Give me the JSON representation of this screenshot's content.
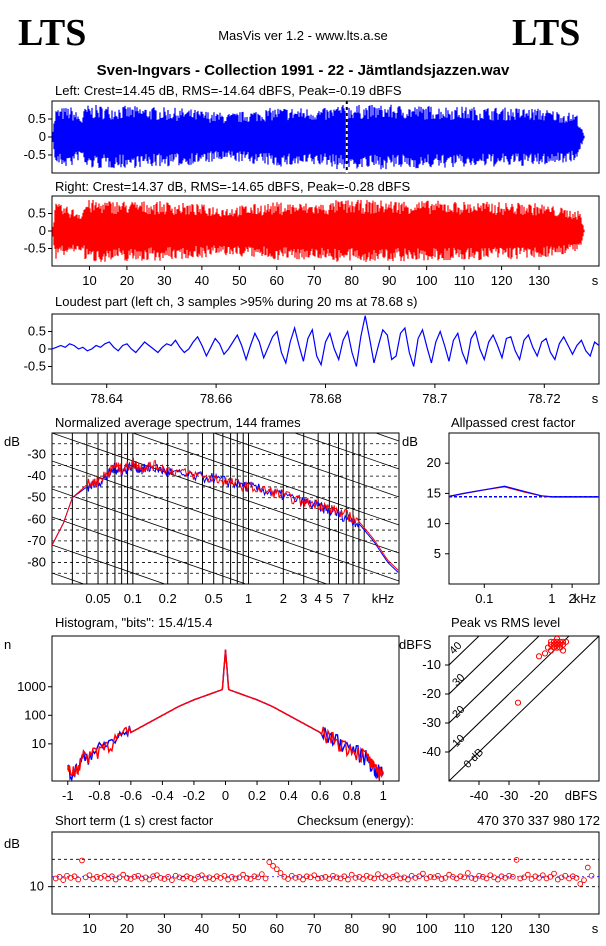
{
  "header": {
    "logo_left": "LTS",
    "logo_right": "LTS",
    "app": "MasVis ver 1.2 - www.lts.a.se",
    "file_title": "Sven-Ingvars - Collection 1991 - 22 - Jämtlandsjazzen.wav"
  },
  "colors": {
    "left": "#0000ff",
    "right": "#ff0000",
    "grid": "#000000"
  },
  "chart_data": [
    {
      "id": "left-waveform",
      "type": "area",
      "title": "Left: Crest=14.45 dB, RMS=-14.64 dBFS, Peak=-0.19 dBFS",
      "ylim": [
        -1,
        1
      ],
      "yticks": [
        "0.5",
        "0",
        "-0.5"
      ],
      "xlim": [
        0,
        146
      ],
      "loudest_marker_s": 78.68,
      "envelope": [
        {
          "t": 0,
          "a": 0.0
        },
        {
          "t": 1,
          "a": 0.85
        },
        {
          "t": 5,
          "a": 0.9
        },
        {
          "t": 8,
          "a": 0.6
        },
        {
          "t": 9,
          "a": 0.95
        },
        {
          "t": 20,
          "a": 0.92
        },
        {
          "t": 35,
          "a": 0.85
        },
        {
          "t": 47,
          "a": 0.7
        },
        {
          "t": 60,
          "a": 0.88
        },
        {
          "t": 74,
          "a": 0.85
        },
        {
          "t": 76,
          "a": 0.95
        },
        {
          "t": 90,
          "a": 0.95
        },
        {
          "t": 110,
          "a": 0.9
        },
        {
          "t": 130,
          "a": 0.85
        },
        {
          "t": 140,
          "a": 0.7
        },
        {
          "t": 142,
          "a": 0.05
        }
      ]
    },
    {
      "id": "right-waveform",
      "type": "area",
      "title": "Right: Crest=14.37 dB, RMS=-14.65 dBFS, Peak=-0.28 dBFS",
      "ylim": [
        -1,
        1
      ],
      "yticks": [
        "0.5",
        "0",
        "-0.5"
      ],
      "xlim": [
        0,
        146
      ],
      "xticks": [
        "10",
        "20",
        "30",
        "40",
        "50",
        "60",
        "70",
        "80",
        "90",
        "100",
        "110",
        "120",
        "130"
      ],
      "xunit": "s",
      "envelope": [
        {
          "t": 0,
          "a": 0.0
        },
        {
          "t": 1,
          "a": 0.85
        },
        {
          "t": 8,
          "a": 0.6
        },
        {
          "t": 9,
          "a": 0.95
        },
        {
          "t": 30,
          "a": 0.9
        },
        {
          "t": 47,
          "a": 0.75
        },
        {
          "t": 60,
          "a": 0.88
        },
        {
          "t": 74,
          "a": 0.85
        },
        {
          "t": 76,
          "a": 0.95
        },
        {
          "t": 100,
          "a": 0.93
        },
        {
          "t": 130,
          "a": 0.85
        },
        {
          "t": 141,
          "a": 0.6
        },
        {
          "t": 142,
          "a": 0.05
        }
      ]
    },
    {
      "id": "loudest-part",
      "type": "line",
      "title": "Loudest part (left  ch, 3 samples >95% during 20 ms at 78.68 s)",
      "ylim": [
        -1,
        1
      ],
      "yticks": [
        "0.5",
        "0",
        "-0.5"
      ],
      "xlim": [
        78.63,
        78.73
      ],
      "xticks": [
        "78.64",
        "78.66",
        "78.68",
        "78.7",
        "78.72"
      ],
      "xunit": "s",
      "y": [
        0.0,
        0.05,
        0.1,
        0.05,
        0.15,
        0.1,
        0.0,
        0.05,
        -0.05,
        0.0,
        0.1,
        0.05,
        0.15,
        0.2,
        0.05,
        -0.05,
        0.1,
        0.15,
        0.0,
        -0.1,
        0.05,
        0.2,
        0.1,
        0.0,
        -0.1,
        0.05,
        0.15,
        0.1,
        0.25,
        0.05,
        -0.1,
        0.0,
        0.2,
        0.35,
        0.1,
        -0.2,
        0.05,
        0.3,
        0.15,
        -0.15,
        0.0,
        0.2,
        0.4,
        0.1,
        -0.3,
        0.1,
        0.45,
        0.2,
        -0.25,
        0.05,
        0.35,
        0.5,
        -0.1,
        -0.4,
        0.2,
        0.6,
        0.1,
        -0.35,
        0.3,
        0.55,
        -0.2,
        -0.45,
        0.2,
        0.45,
        0.0,
        -0.3,
        0.25,
        0.5,
        -0.1,
        -0.5,
        0.35,
        0.95,
        0.3,
        -0.4,
        0.1,
        0.55,
        0.4,
        -0.3,
        -0.2,
        0.45,
        0.6,
        -0.1,
        -0.5,
        0.3,
        0.55,
        0.05,
        -0.4,
        0.2,
        0.5,
        0.1,
        -0.35,
        0.25,
        0.45,
        -0.1,
        -0.4,
        0.3,
        0.5,
        0.0,
        -0.3,
        0.2,
        0.4,
        0.1,
        -0.25,
        0.3,
        0.35,
        -0.05,
        -0.3,
        0.25,
        0.4,
        0.05,
        -0.2,
        0.2,
        0.3,
        -0.1,
        -0.3,
        0.15,
        0.35,
        0.1,
        -0.15,
        0.1,
        0.25,
        -0.05,
        -0.2,
        0.2,
        0.1
      ]
    },
    {
      "id": "spectrum",
      "type": "line",
      "title": "Normalized average spectrum, 144 frames",
      "ylabel": "dB",
      "ylim": [
        -90,
        -20
      ],
      "yticks": [
        "-30",
        "-40",
        "-50",
        "-60",
        "-70",
        "-80"
      ],
      "xscale": "log",
      "xlim": [
        0.02,
        20
      ],
      "xticks": [
        "0.05",
        "0.1",
        "0.2",
        "0.5",
        "1",
        "2",
        "3",
        "4",
        "5",
        "7"
      ],
      "xunit": "kHz",
      "x": [
        0.02,
        0.025,
        0.03,
        0.04,
        0.05,
        0.06,
        0.07,
        0.08,
        0.1,
        0.12,
        0.15,
        0.2,
        0.3,
        0.5,
        0.7,
        1,
        1.5,
        2,
        3,
        4,
        5,
        7,
        9,
        12,
        16,
        20
      ],
      "left": [
        -72,
        -62,
        -50,
        -45,
        -43,
        -40,
        -36,
        -38,
        -35,
        -37,
        -36,
        -38,
        -40,
        -41,
        -43,
        -45,
        -47,
        -49,
        -52,
        -54,
        -56,
        -59,
        -62,
        -70,
        -80,
        -85
      ],
      "right": [
        -72,
        -62,
        -50,
        -44,
        -42,
        -39,
        -35,
        -37,
        -34,
        -36,
        -35,
        -37,
        -39,
        -41,
        -43,
        -45,
        -47,
        -49,
        -52,
        -53,
        -55,
        -58,
        -61,
        -69,
        -79,
        -84
      ]
    },
    {
      "id": "allpassed-crest",
      "type": "line",
      "title": "Allpassed crest factor",
      "ylabel": "dB",
      "ylim": [
        0,
        25
      ],
      "yticks": [
        "20",
        "15",
        "10",
        "5"
      ],
      "xscale": "log",
      "xlim": [
        0.03,
        5
      ],
      "xticks": [
        "0.1",
        "1",
        "2"
      ],
      "xunit": "kHz",
      "x": [
        0.03,
        0.05,
        0.1,
        0.2,
        0.4,
        0.7,
        1,
        2,
        5
      ],
      "left": [
        14.5,
        15.0,
        15.6,
        16.2,
        15.3,
        14.6,
        14.45,
        14.45,
        14.45
      ],
      "right": [
        14.5,
        15.0,
        15.6,
        16.1,
        15.2,
        14.6,
        14.37,
        14.37,
        14.37
      ],
      "reference_db": 14.45
    },
    {
      "id": "histogram",
      "type": "line",
      "title": "Histogram, \"bits\": 15.4/15.4",
      "ylabel": "n",
      "yscale": "log",
      "yticks": [
        "1000",
        "100",
        "10"
      ],
      "xlim": [
        -1.1,
        1.1
      ],
      "xticks": [
        "-1",
        "-0.8",
        "-0.6",
        "-0.4",
        "-0.2",
        "0",
        "0.2",
        "0.4",
        "0.6",
        "0.8",
        "1"
      ],
      "x": [
        -1.0,
        -0.95,
        -0.9,
        -0.8,
        -0.7,
        -0.6,
        -0.5,
        -0.4,
        -0.3,
        -0.2,
        -0.1,
        -0.02,
        0.0,
        0.02,
        0.1,
        0.2,
        0.3,
        0.4,
        0.5,
        0.6,
        0.7,
        0.8,
        0.9,
        0.95,
        1.0
      ],
      "left": [
        1,
        1,
        3,
        6,
        12,
        25,
        50,
        100,
        200,
        350,
        550,
        800,
        20000,
        800,
        550,
        350,
        200,
        100,
        50,
        25,
        12,
        6,
        3,
        1,
        1
      ],
      "right": [
        1,
        1,
        3,
        6,
        12,
        25,
        50,
        100,
        200,
        350,
        550,
        800,
        20000,
        800,
        550,
        350,
        200,
        100,
        50,
        25,
        12,
        6,
        3,
        1,
        1
      ]
    },
    {
      "id": "peak-vs-rms",
      "type": "scatter",
      "title": "Peak vs RMS level",
      "ylabel": "dBFS",
      "xlabel": "dBFS",
      "xlim": [
        -50,
        0
      ],
      "ylim": [
        -50,
        0
      ],
      "xticks": [
        "-40",
        "-30",
        "-20"
      ],
      "yticks": [
        "-10",
        "-20",
        "-30",
        "-40"
      ],
      "diagonals": [
        "40",
        "30",
        "20",
        "10",
        "0 dB"
      ],
      "points": [
        [
          -15,
          -3
        ],
        [
          -14,
          -2
        ],
        [
          -13,
          -4
        ],
        [
          -16,
          -5
        ],
        [
          -12,
          -3
        ],
        [
          -14,
          -1
        ],
        [
          -15,
          -2
        ],
        [
          -13,
          -2
        ],
        [
          -17,
          -4
        ],
        [
          -12,
          -5
        ],
        [
          -16,
          -3
        ],
        [
          -14,
          -4
        ],
        [
          -11,
          -2
        ],
        [
          -18,
          -6
        ],
        [
          -20,
          -7
        ],
        [
          -13,
          -3
        ],
        [
          -15,
          -4
        ],
        [
          -12,
          -2
        ],
        [
          -16,
          -2
        ],
        [
          -14,
          -3
        ],
        [
          -27,
          -23
        ]
      ]
    },
    {
      "id": "short-term-crest",
      "type": "scatter",
      "title": "Short term (1 s) crest factor",
      "checksum_label": "Checksum (energy):",
      "checksum": "470 370 337 980 172",
      "ylabel": "dB",
      "ylim": [
        5,
        20
      ],
      "yticks": [
        "10"
      ],
      "xlim": [
        0,
        146
      ],
      "xticks": [
        "10",
        "20",
        "30",
        "40",
        "50",
        "60",
        "70",
        "80",
        "90",
        "100",
        "110",
        "120",
        "130"
      ],
      "xunit": "s",
      "y": [
        11.5,
        11.8,
        11.2,
        12.0,
        11.6,
        11.9,
        11.3,
        14.8,
        11.7,
        12.1,
        11.4,
        11.8,
        11.6,
        12.0,
        11.5,
        11.9,
        11.3,
        11.7,
        12.2,
        11.6,
        11.4,
        11.8,
        12.0,
        11.5,
        11.7,
        11.3,
        11.9,
        12.1,
        11.6,
        11.4,
        11.8,
        11.2,
        12.0,
        11.7,
        11.5,
        11.9,
        11.6,
        11.3,
        11.8,
        12.1,
        11.5,
        11.7,
        11.4,
        11.9,
        11.6,
        12.0,
        11.3,
        11.8,
        11.5,
        11.7,
        12.2,
        11.6,
        11.4,
        11.9,
        11.7,
        12.3,
        11.5,
        14.5,
        13.8,
        13.2,
        12.5,
        11.8,
        11.4,
        12.0,
        11.6,
        11.8,
        11.3,
        11.9,
        11.7,
        12.1,
        11.5,
        11.6,
        11.8,
        11.4,
        12.0,
        11.7,
        11.5,
        11.9,
        11.3,
        12.2,
        11.6,
        11.8,
        11.4,
        12.0,
        11.7,
        11.5,
        12.3,
        11.6,
        11.9,
        11.4,
        11.8,
        12.1,
        11.5,
        11.7,
        11.3,
        12.0,
        11.6,
        11.9,
        12.4,
        11.5,
        11.8,
        11.7,
        12.0,
        11.4,
        11.6,
        12.2,
        11.8,
        11.5,
        11.9,
        11.7,
        12.5,
        11.6,
        11.4,
        12.0,
        11.8,
        11.5,
        12.1,
        11.7,
        11.3,
        11.9,
        11.6,
        12.0,
        11.8,
        14.9,
        11.5,
        11.7,
        12.2,
        11.4,
        11.9,
        11.6,
        12.1,
        11.5,
        11.8,
        12.4,
        11.3,
        11.7,
        12.0,
        11.5,
        11.9,
        11.6,
        10.5,
        11.2,
        13.5,
        12.0
      ]
    }
  ]
}
